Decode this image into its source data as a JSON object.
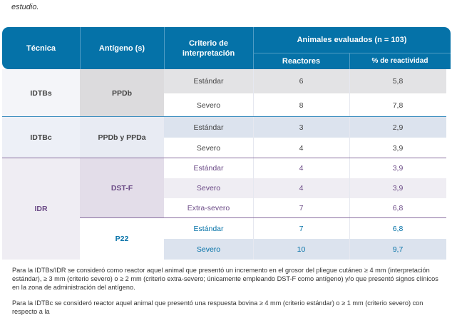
{
  "intro_text": "estudio.",
  "header": {
    "tecnica": "Técnica",
    "antigeno": "Antígeno (s)",
    "criterio": "Criterio de interpretación",
    "animales": "Animales evaluados (n = 103)",
    "reactores": "Reactores",
    "reactividad": "% de reactividad"
  },
  "groups": [
    {
      "tecnica": "IDTBs",
      "antigeno": "PPDb",
      "rows": [
        {
          "criterio": "Estándar",
          "reactores": "6",
          "reactividad": "5,8"
        },
        {
          "criterio": "Severo",
          "reactores": "8",
          "reactividad": "7,8"
        }
      ]
    },
    {
      "tecnica": "IDTBc",
      "antigeno": "PPDb y PPDa",
      "rows": [
        {
          "criterio": "Estándar",
          "reactores": "3",
          "reactividad": "2,9"
        },
        {
          "criterio": "Severo",
          "reactores": "4",
          "reactividad": "3,9"
        }
      ]
    },
    {
      "tecnica": "IDR",
      "antigeno": "DST-F",
      "rows": [
        {
          "criterio": "Estándar",
          "reactores": "4",
          "reactividad": "3,9"
        },
        {
          "criterio": "Severo",
          "reactores": "4",
          "reactividad": "3,9"
        },
        {
          "criterio": "Extra-severo",
          "reactores": "7",
          "reactividad": "6,8"
        }
      ]
    },
    {
      "antigeno": "P22",
      "rows": [
        {
          "criterio": "Estándar",
          "reactores": "7",
          "reactividad": "6,8"
        },
        {
          "criterio": "Severo",
          "reactores": "10",
          "reactividad": "9,7"
        }
      ]
    }
  ],
  "notes": [
    "Para la IDTBs/IDR se consideró como reactor aquel animal que presentó un incremento en el grosor del pliegue cutáneo ≥ 4 mm (interpretación estándar), ≥ 3 mm (criterio severo) o ≥ 2 mm (criterio extra-severo; únicamente empleando DST-F como antígeno) y/o que presentó signos clínicos en la zona de administración del antígeno.",
    "Para la IDTBc se consideró reactor aquel animal que presentó una respuesta bovina ≥ 4 mm (criterio estándar) o ≥ 1 mm (criterio severo) con respecto a la"
  ],
  "colors": {
    "header": "#0572a8",
    "purple": "#6b4a86",
    "blue": "#0572a8"
  }
}
